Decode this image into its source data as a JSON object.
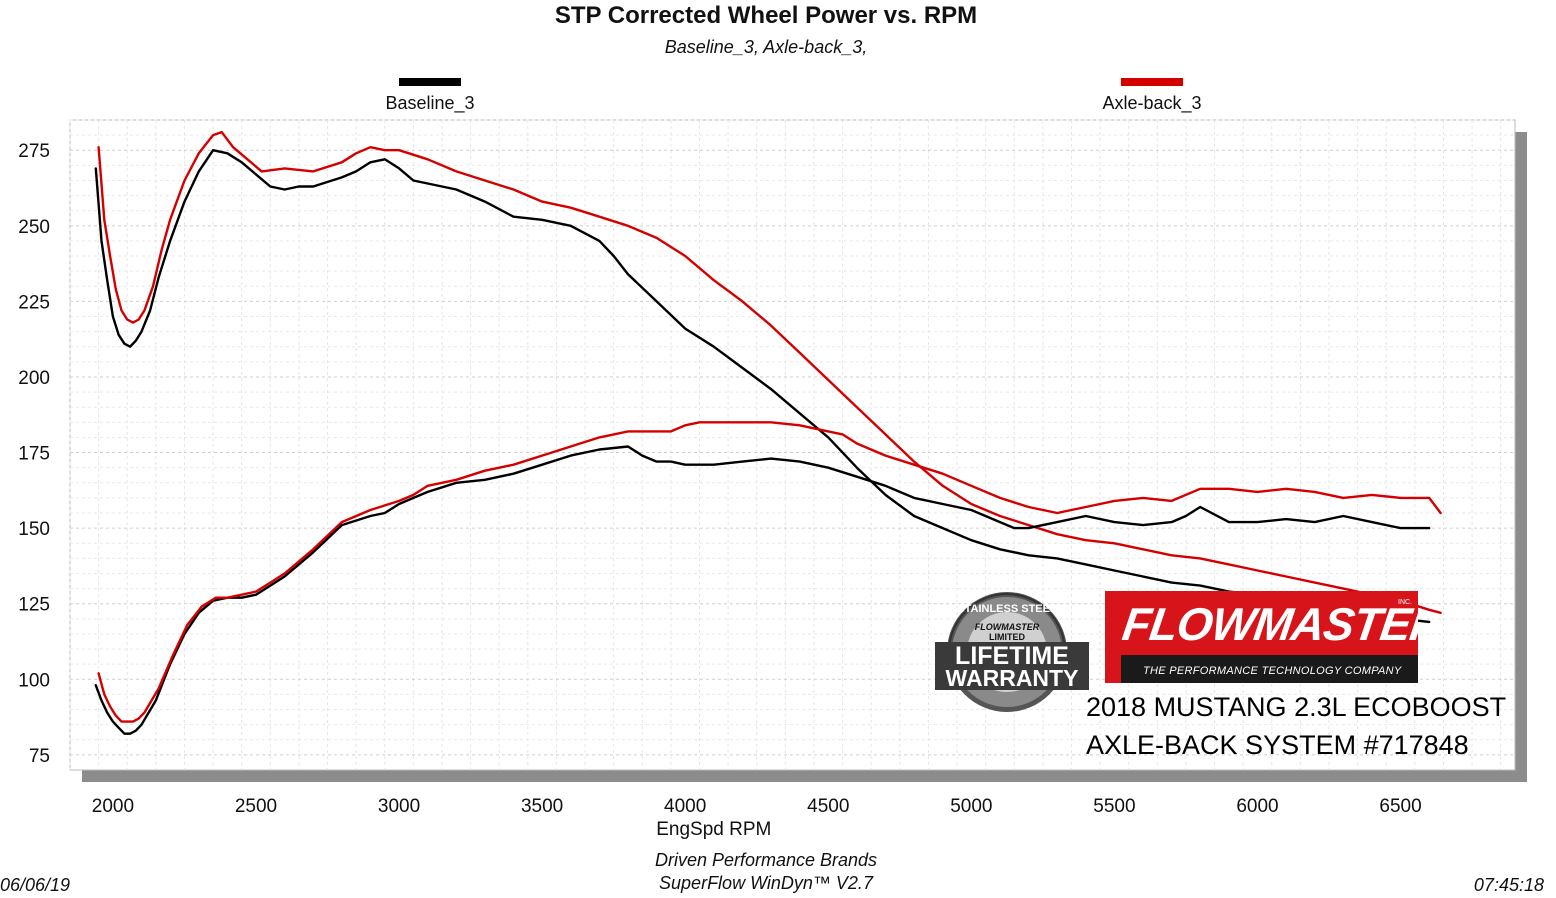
{
  "header": {
    "title": "STP Corrected Wheel Power vs. RPM",
    "subtitle": "Baseline_3, Axle-back_3,"
  },
  "legend": [
    {
      "label": "Baseline_3",
      "color": "#000000"
    },
    {
      "label": "Axle-back_3",
      "color": "#d40000"
    }
  ],
  "footer": {
    "date": "06/06/19",
    "company": "Driven Performance Brands",
    "software": "SuperFlow WinDyn™  V2.7",
    "time": "07:45:18"
  },
  "caption": {
    "line1": "2018 MUSTANG 2.3L ECOBOOST",
    "line2": "AXLE-BACK SYSTEM #717848"
  },
  "logo": {
    "brand": "FLOWMASTER",
    "tagline": "THE PERFORMANCE TECHNOLOGY COMPANY",
    "inc": "INC.",
    "badge_top": "STAINLESS STEEL",
    "badge_brand": "FLOWMASTER",
    "badge_mid": "LIMITED",
    "badge_line1": "LIFETIME",
    "badge_line2": "WARRANTY"
  },
  "chart_data": {
    "type": "line",
    "title": "STP Corrected Wheel Power vs. RPM",
    "xlabel": "EngSpd  RPM",
    "ylabel": "",
    "xlim": [
      1850,
      6900
    ],
    "ylim": [
      70,
      285
    ],
    "xticks": [
      2000,
      2500,
      3000,
      3500,
      4000,
      4500,
      5000,
      5500,
      6000,
      6500
    ],
    "yticks": [
      75,
      100,
      125,
      150,
      175,
      200,
      225,
      250,
      275
    ],
    "grid": true,
    "legend_position": "top",
    "series": [
      {
        "name": "Baseline_3",
        "measure": "torque",
        "color": "#000000",
        "x": [
          1940,
          1960,
          1980,
          2000,
          2020,
          2040,
          2060,
          2080,
          2100,
          2130,
          2160,
          2200,
          2250,
          2300,
          2350,
          2400,
          2450,
          2500,
          2550,
          2600,
          2650,
          2700,
          2800,
          2850,
          2900,
          2950,
          3000,
          3050,
          3100,
          3200,
          3300,
          3400,
          3500,
          3600,
          3700,
          3750,
          3800,
          3900,
          4000,
          4100,
          4200,
          4300,
          4400,
          4500,
          4600,
          4700,
          4800,
          4900,
          5000,
          5100,
          5200,
          5300,
          5400,
          5500,
          5600,
          5700,
          5800,
          5900,
          6000,
          6100,
          6200,
          6300,
          6400,
          6500,
          6600
        ],
        "y": [
          269,
          245,
          232,
          220,
          214,
          211,
          210,
          212,
          215,
          222,
          233,
          245,
          258,
          268,
          275,
          274,
          271,
          267,
          263,
          262,
          263,
          263,
          266,
          268,
          271,
          272,
          269,
          265,
          264,
          262,
          258,
          253,
          252,
          250,
          245,
          240,
          234,
          225,
          216,
          210,
          203,
          196,
          188,
          180,
          170,
          161,
          154,
          150,
          146,
          143,
          141,
          140,
          138,
          136,
          134,
          132,
          131,
          129,
          128,
          126,
          124,
          122,
          121,
          120,
          119
        ]
      },
      {
        "name": "Axle-back_3",
        "measure": "torque",
        "color": "#d40000",
        "x": [
          1950,
          1970,
          1990,
          2010,
          2030,
          2050,
          2070,
          2090,
          2110,
          2140,
          2170,
          2200,
          2250,
          2300,
          2350,
          2380,
          2420,
          2470,
          2520,
          2600,
          2700,
          2800,
          2850,
          2900,
          2950,
          3000,
          3100,
          3200,
          3300,
          3400,
          3500,
          3600,
          3700,
          3800,
          3900,
          4000,
          4100,
          4200,
          4300,
          4400,
          4500,
          4600,
          4700,
          4800,
          4900,
          5000,
          5100,
          5200,
          5300,
          5400,
          5500,
          5600,
          5700,
          5800,
          5900,
          6000,
          6100,
          6200,
          6300,
          6400,
          6500,
          6600,
          6640
        ],
        "y": [
          276,
          252,
          240,
          229,
          222,
          219,
          218,
          219,
          222,
          230,
          242,
          252,
          265,
          274,
          280,
          281,
          276,
          272,
          268,
          269,
          268,
          271,
          274,
          276,
          275,
          275,
          272,
          268,
          265,
          262,
          258,
          256,
          253,
          250,
          246,
          240,
          232,
          225,
          217,
          208,
          199,
          190,
          181,
          172,
          164,
          158,
          154,
          151,
          148,
          146,
          145,
          143,
          141,
          140,
          138,
          136,
          134,
          132,
          130,
          128,
          126,
          123,
          122
        ]
      },
      {
        "name": "Baseline_3",
        "measure": "power",
        "color": "#000000",
        "x": [
          1940,
          1960,
          1980,
          2000,
          2020,
          2040,
          2060,
          2080,
          2100,
          2150,
          2200,
          2250,
          2300,
          2350,
          2400,
          2450,
          2500,
          2550,
          2600,
          2700,
          2800,
          2900,
          2950,
          3000,
          3050,
          3100,
          3200,
          3300,
          3400,
          3500,
          3600,
          3700,
          3800,
          3850,
          3900,
          3950,
          4000,
          4100,
          4200,
          4300,
          4400,
          4500,
          4600,
          4700,
          4800,
          4900,
          5000,
          5100,
          5150,
          5200,
          5300,
          5400,
          5500,
          5600,
          5700,
          5750,
          5800,
          5900,
          6000,
          6100,
          6200,
          6300,
          6400,
          6500,
          6600
        ],
        "y": [
          98,
          93,
          89,
          86,
          84,
          82,
          82,
          83,
          85,
          93,
          105,
          115,
          122,
          126,
          127,
          127,
          128,
          131,
          134,
          142,
          151,
          154,
          155,
          158,
          160,
          162,
          165,
          166,
          168,
          171,
          174,
          176,
          177,
          174,
          172,
          172,
          171,
          171,
          172,
          173,
          172,
          170,
          167,
          164,
          160,
          158,
          156,
          152,
          150,
          150,
          152,
          154,
          152,
          151,
          152,
          154,
          157,
          152,
          152,
          153,
          152,
          154,
          152,
          150,
          150
        ]
      },
      {
        "name": "Axle-back_3",
        "measure": "power",
        "color": "#d40000",
        "x": [
          1950,
          1970,
          1990,
          2010,
          2030,
          2050,
          2070,
          2090,
          2110,
          2160,
          2210,
          2260,
          2310,
          2360,
          2400,
          2450,
          2500,
          2550,
          2600,
          2700,
          2800,
          2900,
          3000,
          3050,
          3100,
          3200,
          3300,
          3400,
          3500,
          3600,
          3700,
          3800,
          3900,
          3950,
          4000,
          4050,
          4100,
          4200,
          4300,
          4400,
          4500,
          4550,
          4600,
          4700,
          4800,
          4900,
          5000,
          5100,
          5200,
          5300,
          5400,
          5500,
          5600,
          5700,
          5800,
          5900,
          6000,
          6100,
          6200,
          6300,
          6400,
          6500,
          6550,
          6600,
          6640
        ],
        "y": [
          102,
          95,
          91,
          88,
          86,
          86,
          86,
          87,
          89,
          97,
          108,
          118,
          124,
          127,
          127,
          128,
          129,
          132,
          135,
          143,
          152,
          156,
          159,
          161,
          164,
          166,
          169,
          171,
          174,
          177,
          180,
          182,
          182,
          182,
          184,
          185,
          185,
          185,
          185,
          184,
          182,
          181,
          178,
          174,
          171,
          168,
          164,
          160,
          157,
          155,
          157,
          159,
          160,
          159,
          163,
          163,
          162,
          163,
          162,
          160,
          161,
          160,
          160,
          160,
          155
        ]
      }
    ]
  }
}
